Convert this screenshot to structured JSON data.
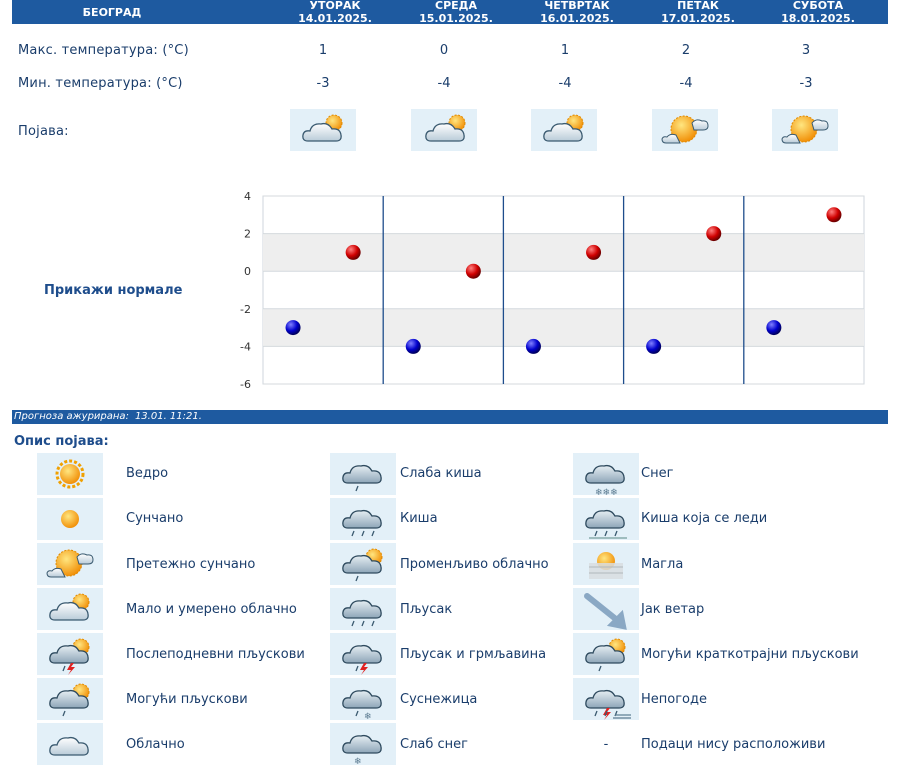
{
  "header": {
    "city": "БЕОГРАД",
    "days": [
      {
        "name": "УТОРАК",
        "date": "14.01.2025."
      },
      {
        "name": "СРЕДА",
        "date": "15.01.2025."
      },
      {
        "name": "ЧЕТВРТАК",
        "date": "16.01.2025."
      },
      {
        "name": "ПЕТАК",
        "date": "17.01.2025."
      },
      {
        "name": "СУБОТА",
        "date": "18.01.2025."
      }
    ]
  },
  "rows": {
    "max_label": "Макс. температура: (°C)",
    "min_label": "Мин. температура: (°C)",
    "phenomenon_label": "Појава:",
    "max_values": [
      "1",
      "0",
      "1",
      "2",
      "3"
    ],
    "min_values": [
      "-3",
      "-4",
      "-4",
      "-4",
      "-3"
    ],
    "icons": [
      "mostly-cloudy-sun-icon",
      "partly-cloudy-icon",
      "mostly-cloudy-sun-icon",
      "mostly-sunny-icon",
      "mostly-sunny-icon"
    ]
  },
  "show_normals": "Прикажи нормале",
  "chart_data": {
    "type": "scatter",
    "categories": [
      "УТОРАК",
      "СРЕДА",
      "ЧЕТВРТАК",
      "ПЕТАК",
      "СУБОТА"
    ],
    "series": [
      {
        "values": [
          1,
          0,
          1,
          2,
          3
        ],
        "color": "#cc0000"
      },
      {
        "values": [
          -3,
          -4,
          -4,
          -4,
          -3
        ],
        "color": "#0000cc"
      }
    ],
    "ylim": [
      -6,
      4
    ],
    "yticks": [
      "4",
      "2",
      "0",
      "-2",
      "-4",
      "-6"
    ],
    "grid": true
  },
  "update": {
    "label": "Прогноза ажурирана:",
    "value": "13.01. 11:21."
  },
  "legend": {
    "title": "Опис појава:",
    "items": [
      {
        "icon": "clear-sky-icon",
        "label": "Ведро"
      },
      {
        "icon": "sunny-icon",
        "label": "Сунчано"
      },
      {
        "icon": "mostly-sunny-icon",
        "label": "Претежно сунчано"
      },
      {
        "icon": "partly-cloudy-icon",
        "label": "Мало и умерено облачно"
      },
      {
        "icon": "afternoon-showers-icon",
        "label": "Послеподневни пљускови"
      },
      {
        "icon": "possible-showers-icon",
        "label": "Могући пљускови"
      },
      {
        "icon": "cloudy-icon",
        "label": "Облачно"
      },
      {
        "icon": "light-rain-icon",
        "label": "Слаба киша"
      },
      {
        "icon": "rain-icon",
        "label": "Киша"
      },
      {
        "icon": "variable-cloudy-icon",
        "label": "Променљиво облачно"
      },
      {
        "icon": "shower-icon",
        "label": "Пљусак"
      },
      {
        "icon": "thunderstorm-icon",
        "label": "Пљусак и грмљавина"
      },
      {
        "icon": "sleet-icon",
        "label": "Суснежица"
      },
      {
        "icon": "light-snow-icon",
        "label": "Слаб снег"
      },
      {
        "icon": "snow-icon",
        "label": "Снег"
      },
      {
        "icon": "freezing-rain-icon",
        "label": "Киша која се леди"
      },
      {
        "icon": "fog-icon",
        "label": "Магла"
      },
      {
        "icon": "strong-wind-icon",
        "label": "Јак ветар"
      },
      {
        "icon": "possible-short-showers-icon",
        "label": "Могући краткотрајни пљускови"
      },
      {
        "icon": "storm-icon",
        "label": "Непогоде"
      },
      {
        "icon": "no-data-icon",
        "label": "Подаци нису расположиви",
        "dash": "-"
      }
    ]
  },
  "colors": {
    "header_bg": "#1e5aa0",
    "icon_bg": "#e3f0f8",
    "max_marker": "#cc0000",
    "min_marker": "#0000cc"
  }
}
